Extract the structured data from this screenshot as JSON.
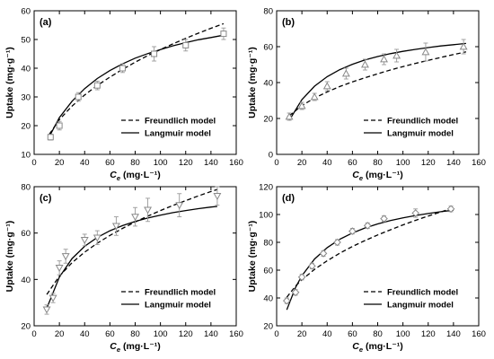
{
  "legend": {
    "freundlich": "Freundlich model",
    "langmuir": "Langmuir model"
  },
  "axis": {
    "y_label": "Uptake (mg·g⁻¹)",
    "x_label_main": "C",
    "x_label_sub": "e",
    "x_label_unit": "(mg·L⁻¹)"
  },
  "colors": {
    "axis": "#000000",
    "marker": "#888888",
    "error_bar": "#999999",
    "curve": "#000000"
  },
  "chart_data": [
    {
      "type": "scatter",
      "panel_label": "(a)",
      "xlim": [
        0,
        160
      ],
      "ylim": [
        10,
        60
      ],
      "xticks": [
        0,
        20,
        40,
        60,
        80,
        100,
        120,
        140,
        160
      ],
      "yticks": [
        10,
        20,
        30,
        40,
        50,
        60
      ],
      "marker": "square",
      "legend_position": "bottom-right",
      "series": [
        {
          "name": "data",
          "x": [
            13,
            20,
            35,
            50,
            70,
            95,
            120,
            150
          ],
          "y": [
            16,
            20,
            30,
            34,
            40,
            45,
            48,
            52
          ],
          "err": [
            1,
            1.5,
            1.5,
            1.5,
            1.5,
            2.5,
            2,
            2
          ]
        },
        {
          "name": "Freundlich model",
          "style": "dashed",
          "x": [
            12,
            20,
            30,
            40,
            50,
            60,
            70,
            80,
            90,
            100,
            110,
            120,
            130,
            140,
            150
          ],
          "y": [
            17,
            22.1,
            26.8,
            30.7,
            34,
            36.9,
            39.6,
            42.1,
            44.4,
            46.5,
            48.5,
            50.4,
            52.2,
            53.9,
            55.5
          ]
        },
        {
          "name": "Langmuir model",
          "style": "solid",
          "x": [
            12,
            20,
            30,
            40,
            50,
            60,
            70,
            80,
            90,
            100,
            110,
            120,
            130,
            140,
            150
          ],
          "y": [
            16.2,
            22.8,
            28.5,
            32.9,
            36.4,
            39.2,
            41.5,
            43.5,
            45.1,
            46.5,
            47.8,
            48.9,
            49.9,
            50.7,
            51.5
          ]
        }
      ]
    },
    {
      "type": "scatter",
      "panel_label": "(b)",
      "xlim": [
        0,
        160
      ],
      "ylim": [
        0,
        80
      ],
      "xticks": [
        0,
        20,
        40,
        60,
        80,
        100,
        120,
        140,
        160
      ],
      "yticks": [
        0,
        20,
        40,
        60,
        80
      ],
      "marker": "triangle-up",
      "legend_position": "bottom-right",
      "series": [
        {
          "name": "data",
          "x": [
            10,
            20,
            30,
            40,
            55,
            70,
            85,
            95,
            118,
            148
          ],
          "y": [
            21,
            27,
            32,
            38,
            45,
            50,
            53,
            55,
            57,
            60
          ],
          "err": [
            2,
            2,
            2,
            2.5,
            3,
            3,
            3,
            3.5,
            5,
            4
          ]
        },
        {
          "name": "Freundlich model",
          "style": "dashed",
          "x": [
            10,
            20,
            30,
            40,
            50,
            60,
            70,
            80,
            90,
            100,
            110,
            120,
            130,
            140,
            150
          ],
          "y": [
            21.5,
            27.2,
            31.4,
            34.8,
            37.8,
            40.4,
            42.7,
            44.9,
            47,
            48.9,
            50.7,
            52.4,
            54,
            55.6,
            57.1
          ]
        },
        {
          "name": "Langmuir model",
          "style": "solid",
          "x": [
            10,
            20,
            30,
            40,
            50,
            60,
            70,
            80,
            90,
            100,
            110,
            120,
            130,
            140,
            150
          ],
          "y": [
            19,
            30.5,
            38,
            43.3,
            47.2,
            50.2,
            52.6,
            54.5,
            56.1,
            57.4,
            58.5,
            59.5,
            60.4,
            61.1,
            61.8
          ]
        }
      ]
    },
    {
      "type": "scatter",
      "panel_label": "(c)",
      "xlim": [
        0,
        160
      ],
      "ylim": [
        20,
        80
      ],
      "xticks": [
        0,
        20,
        40,
        60,
        80,
        100,
        120,
        140,
        160
      ],
      "yticks": [
        20,
        40,
        60,
        80
      ],
      "marker": "triangle-down",
      "legend_position": "bottom-right",
      "series": [
        {
          "name": "data",
          "x": [
            10,
            15,
            20,
            25,
            40,
            50,
            65,
            80,
            90,
            115,
            145
          ],
          "y": [
            27,
            32,
            45,
            50,
            57,
            58,
            63,
            67,
            70,
            72,
            76
          ],
          "err": [
            2,
            2,
            3,
            3,
            2.5,
            3,
            4,
            4,
            5,
            5,
            4
          ]
        },
        {
          "name": "Freundlich model",
          "style": "dashed",
          "x": [
            10,
            20,
            30,
            40,
            50,
            60,
            70,
            80,
            90,
            100,
            110,
            120,
            130,
            140,
            145
          ],
          "y": [
            33.5,
            41.4,
            47.2,
            51.8,
            55.6,
            59,
            62,
            64.8,
            67.3,
            69.7,
            71.9,
            74,
            76,
            77.9,
            78.8
          ]
        },
        {
          "name": "Langmuir model",
          "style": "solid",
          "x": [
            10,
            20,
            30,
            40,
            50,
            60,
            70,
            80,
            90,
            100,
            110,
            120,
            130,
            140,
            145
          ],
          "y": [
            27.6,
            41,
            49,
            54.3,
            58.1,
            61,
            63.2,
            65,
            66.5,
            67.7,
            68.8,
            69.7,
            70.5,
            71.2,
            71.5
          ]
        }
      ]
    },
    {
      "type": "scatter",
      "panel_label": "(d)",
      "xlim": [
        0,
        160
      ],
      "ylim": [
        20,
        120
      ],
      "xticks": [
        0,
        20,
        40,
        60,
        80,
        100,
        120,
        140,
        160
      ],
      "yticks": [
        20,
        40,
        60,
        80,
        100,
        120
      ],
      "marker": "diamond",
      "legend_position": "bottom-right",
      "series": [
        {
          "name": "data",
          "x": [
            8,
            15,
            20,
            28,
            37,
            48,
            60,
            72,
            85,
            110,
            138
          ],
          "y": [
            38,
            44,
            55,
            63,
            72,
            80,
            88,
            92,
            97,
            101,
            104
          ],
          "err": [
            2,
            2,
            2,
            2,
            2,
            2,
            2,
            2,
            2,
            3,
            2
          ]
        },
        {
          "name": "Freundlich model",
          "style": "dashed",
          "x": [
            8,
            15,
            20,
            30,
            40,
            50,
            60,
            70,
            80,
            90,
            100,
            110,
            120,
            130,
            140
          ],
          "y": [
            40.5,
            48.6,
            53.1,
            60.6,
            66.8,
            72.2,
            77,
            81.3,
            85.3,
            89,
            92.5,
            95.8,
            98.9,
            101.9,
            104.7
          ]
        },
        {
          "name": "Langmuir model",
          "style": "solid",
          "x": [
            8,
            15,
            20,
            30,
            40,
            50,
            60,
            70,
            80,
            90,
            100,
            110,
            120,
            130,
            140
          ],
          "y": [
            31.5,
            47.6,
            56,
            68,
            76.2,
            82.2,
            86.7,
            90.3,
            93.2,
            95.6,
            97.6,
            99.3,
            100.7,
            102,
            103.1
          ]
        }
      ]
    }
  ]
}
